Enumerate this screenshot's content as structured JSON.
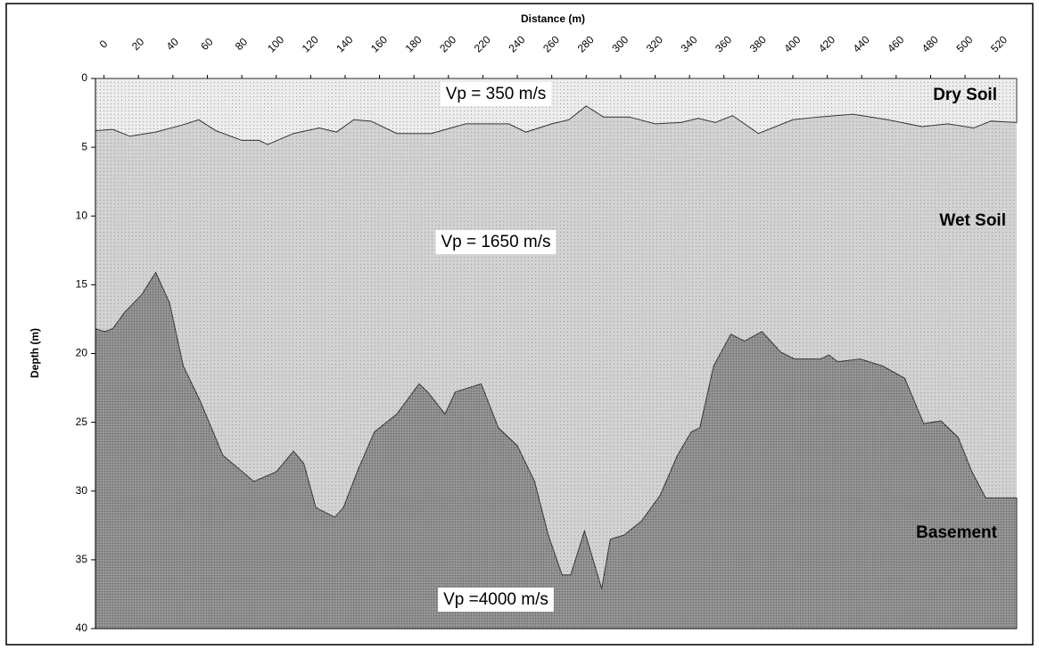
{
  "chart_data": {
    "type": "area",
    "title": "Distance (m)",
    "y_label": "Depth (m)",
    "xlim": [
      -5,
      530
    ],
    "xticks": [
      0,
      20,
      40,
      60,
      80,
      100,
      120,
      140,
      160,
      180,
      200,
      220,
      240,
      260,
      280,
      300,
      320,
      340,
      360,
      380,
      400,
      420,
      440,
      460,
      480,
      500,
      520
    ],
    "ylim": [
      0,
      40
    ],
    "yticks": [
      0,
      5,
      10,
      15,
      20,
      25,
      30,
      35,
      40
    ],
    "y_inverted": true,
    "background_color": "#d2d2d2",
    "series": [
      {
        "name": "Dry Soil",
        "color": "#ececec",
        "x": [
          -5,
          5,
          15,
          30,
          45,
          55,
          65,
          80,
          90,
          95,
          110,
          125,
          135,
          145,
          155,
          170,
          190,
          210,
          235,
          245,
          260,
          270,
          280,
          290,
          305,
          320,
          335,
          345,
          355,
          365,
          380,
          400,
          415,
          435,
          455,
          475,
          490,
          505,
          515,
          530
        ],
        "values": [
          3.8,
          3.7,
          4.2,
          3.9,
          3.4,
          3.0,
          3.8,
          4.5,
          4.5,
          4.8,
          4.0,
          3.6,
          3.9,
          3.0,
          3.1,
          4.0,
          4.0,
          3.3,
          3.3,
          3.9,
          3.3,
          3.0,
          2.0,
          2.8,
          2.8,
          3.3,
          3.2,
          2.9,
          3.2,
          2.7,
          4.0,
          3.0,
          2.8,
          2.6,
          3.0,
          3.5,
          3.3,
          3.6,
          3.1,
          3.2
        ]
      },
      {
        "name": "Basement",
        "color": "#8e8e8e",
        "x": [
          -5,
          0.5,
          5,
          12,
          22,
          30,
          38,
          46,
          56,
          69,
          87,
          100,
          110,
          116,
          123,
          134,
          139,
          147,
          157,
          170,
          183,
          188,
          198,
          204,
          219,
          229,
          240,
          250,
          258,
          266,
          271,
          279,
          289,
          294,
          302,
          312,
          323,
          333,
          341,
          346,
          354,
          364,
          372,
          382,
          393,
          401,
          416,
          421,
          426,
          439,
          452,
          465,
          476,
          486,
          496,
          504,
          512,
          530
        ],
        "values": [
          18.2,
          18.4,
          18.2,
          17.0,
          15.7,
          14.1,
          16.3,
          20.9,
          23.5,
          27.4,
          29.3,
          28.6,
          27.1,
          28.0,
          31.2,
          31.9,
          31.2,
          28.6,
          25.7,
          24.4,
          22.2,
          22.8,
          24.4,
          22.8,
          22.2,
          25.4,
          26.7,
          29.3,
          33.2,
          36.1,
          36.1,
          32.9,
          37.1,
          33.5,
          33.2,
          32.2,
          30.3,
          27.4,
          25.7,
          25.4,
          20.9,
          18.6,
          19.1,
          18.4,
          19.9,
          20.4,
          20.4,
          20.1,
          20.6,
          20.4,
          20.9,
          21.8,
          25.1,
          24.9,
          26.1,
          28.6,
          30.5,
          30.5
        ]
      }
    ],
    "annotations": [
      "Vp = 350 m/s",
      "Vp = 1650 m/s",
      "Vp =4000 m/s",
      "Wet Soil"
    ]
  }
}
